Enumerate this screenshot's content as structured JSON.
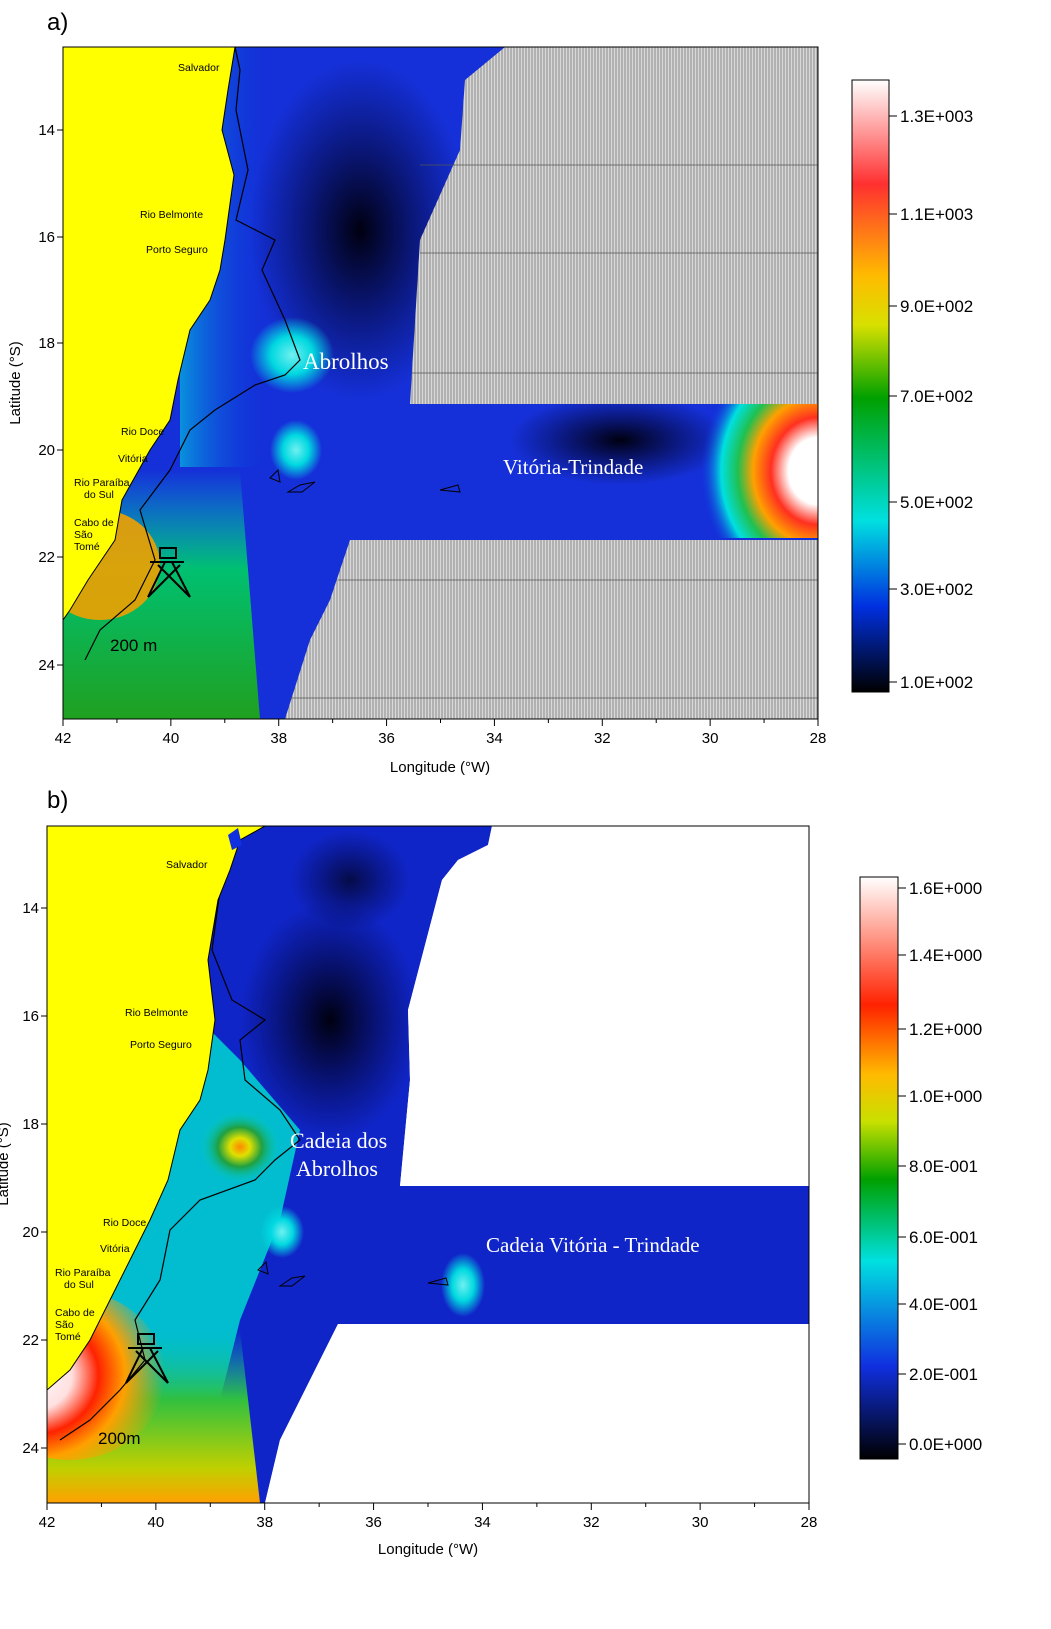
{
  "panels": [
    {
      "label": "a)",
      "xlabel": "Longitude (°W)",
      "ylabel": "Latitude (°S)",
      "xticks": [
        "42",
        "40",
        "38",
        "36",
        "34",
        "32",
        "30",
        "28"
      ],
      "yticks": [
        "14",
        "16",
        "18",
        "20",
        "22",
        "24"
      ],
      "places": [
        "Salvador",
        "Rio Belmonte",
        "Porto Seguro",
        "Rio Doce",
        "Vitória",
        "Rio Paraíba",
        "do Sul",
        "Cabo de",
        "São",
        "Tomé"
      ],
      "features": [
        "Abrolhos",
        "Vitória-Trindade"
      ],
      "isobath": "200 m",
      "colorbar": [
        "1.3E+003",
        "1.1E+003",
        "9.0E+002",
        "7.0E+002",
        "5.0E+002",
        "3.0E+002",
        "1.0E+002"
      ]
    },
    {
      "label": "b)",
      "xlabel": "Longitude (°W)",
      "ylabel": "Latitude (°S)",
      "xticks": [
        "42",
        "40",
        "38",
        "36",
        "34",
        "32",
        "30",
        "28"
      ],
      "yticks": [
        "14",
        "16",
        "18",
        "20",
        "22",
        "24"
      ],
      "places": [
        "Salvador",
        "Rio Belmonte",
        "Porto Seguro",
        "Rio Doce",
        "Vitória",
        "Rio Paraíba",
        "do Sul",
        "Cabo de",
        "São",
        "Tomé"
      ],
      "features": [
        "Cadeia dos",
        "Abrolhos",
        "Cadeia Vitória - Trindade"
      ],
      "isobath": "200m",
      "colorbar": [
        "1.6E+000",
        "1.4E+000",
        "1.2E+000",
        "1.0E+000",
        "8.0E-001",
        "6.0E-001",
        "4.0E-001",
        "2.0E-001",
        "0.0E+000"
      ]
    }
  ],
  "colors": {
    "land": "#ffff00",
    "deep": "#000000",
    "low": "#0a1ab8",
    "mid": "#00e5e5",
    "green": "#1aa01a",
    "high": "#ff2200",
    "max": "#ffffff"
  }
}
